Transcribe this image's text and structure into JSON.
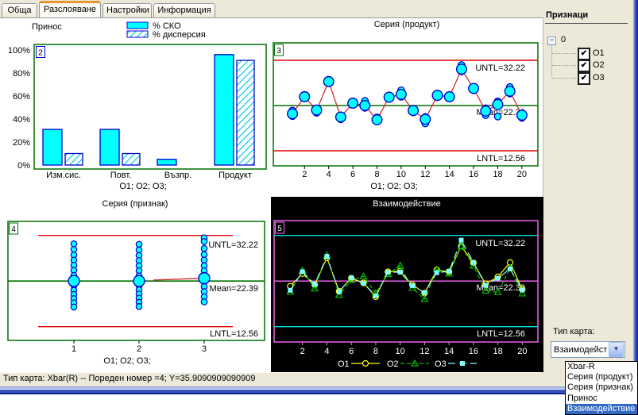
{
  "tabs": {
    "items": [
      {
        "label": "Обща",
        "active": false
      },
      {
        "label": "Разслояване",
        "active": true
      },
      {
        "label": "Настройки",
        "active": false
      },
      {
        "label": "Информация",
        "active": false
      }
    ]
  },
  "sidebar": {
    "title": "Признаци",
    "tree_root": "0",
    "items": [
      {
        "label": "О1",
        "checked": true
      },
      {
        "label": "О2",
        "checked": true
      },
      {
        "label": "О3",
        "checked": true
      }
    ],
    "check_glyph": "✔",
    "collapse_glyph": "−"
  },
  "card_type": {
    "label": "Тип карта:",
    "value": "Взаимодействие",
    "arrow_glyph": "▼",
    "options": [
      "Xbar-R",
      "Серия (продукт)",
      "Серия (признак)",
      "Принос",
      "Взаимодействие"
    ],
    "selected_index": 4
  },
  "status_bar": {
    "text": "Тип карта: Xbar(R) -- Пореден номер =4; Y=35.9090909090909"
  },
  "colors": {
    "selection_blue": "#316ac5",
    "cyan_fill": "#00ffff",
    "blue_stroke": "#0000cc",
    "limit_red": "#dd0000",
    "data_red": "#d03030",
    "mean_green": "#007000",
    "panel_border_green": "#007000",
    "black_bg": "#000000",
    "magenta": "#ff66ff",
    "cyan_line": "#00dede",
    "white": "#ffffff",
    "series_o1": "#ffff00",
    "series_o2": "#00c000",
    "series_o3": "#80ffff"
  },
  "chart_data": [
    {
      "panel": 2,
      "type": "bar",
      "title": "Принос",
      "legend": [
        {
          "label": "% СКО",
          "style": "solid"
        },
        {
          "label": "% дисперсия",
          "style": "hatched"
        }
      ],
      "categories": [
        "Изм.сис.",
        "Повт.",
        "Възпр.",
        "Продукт"
      ],
      "series": [
        {
          "name": "% СКО",
          "values": [
            31,
            31,
            5,
            96
          ]
        },
        {
          "name": "% дисперсия",
          "values": [
            10,
            10,
            null,
            91
          ]
        }
      ],
      "yticks": [
        0,
        20,
        40,
        60,
        80,
        100
      ],
      "ylim": [
        0,
        100
      ],
      "ytick_suffix": "%",
      "xlabel": "О1; О2; О3;"
    },
    {
      "panel": 3,
      "type": "control-scatter",
      "title": "Серия (продукт)",
      "x": [
        1,
        2,
        3,
        4,
        5,
        6,
        7,
        8,
        9,
        10,
        11,
        12,
        13,
        14,
        15,
        16,
        17,
        18,
        19,
        20
      ],
      "means": [
        20.6,
        24.3,
        21.4,
        27.6,
        19.9,
        22.9,
        22.4,
        19.3,
        24.2,
        24.8,
        21.3,
        19.4,
        24.6,
        24.3,
        30.3,
        26.1,
        21.2,
        22.6,
        25.5,
        20.3
      ],
      "points": {
        "o1": [
          21.3,
          24.0,
          21.6,
          27.4,
          20.2,
          23.0,
          22.0,
          19.0,
          24.4,
          24.5,
          21.6,
          19.8,
          24.8,
          24.4,
          29.9,
          26.3,
          21.8,
          23.3,
          26.4,
          20.6
        ],
        "o2": [
          20.1,
          24.7,
          20.8,
          27.9,
          19.4,
          22.6,
          23.4,
          19.8,
          23.9,
          25.7,
          20.9,
          18.5,
          24.9,
          24.0,
          29.8,
          25.7,
          20.3,
          20.0,
          25.2,
          19.7
        ],
        "o3": [
          20.4,
          24.4,
          21.7,
          27.7,
          20.1,
          23.1,
          21.9,
          19.2,
          24.3,
          24.3,
          21.4,
          19.9,
          24.2,
          24.5,
          31.2,
          26.4,
          21.5,
          23.0,
          25.0,
          20.5
        ]
      },
      "untl": {
        "label": "UNTL=32.22",
        "value": 32.22
      },
      "mean": {
        "label": "Mean=22.39",
        "value": 22.39
      },
      "lntl": {
        "label": "LNTL=12.56",
        "value": 12.56
      },
      "xticks": [
        2,
        4,
        6,
        8,
        10,
        12,
        14,
        16,
        18,
        20
      ],
      "xlabel": "О1; О2; О3;"
    },
    {
      "panel": 4,
      "type": "dot-stack",
      "title": "Серия (признак)",
      "stacks": [
        {
          "x": 1,
          "mean": 22.4,
          "dots": [
            30.4,
            29.2,
            28.0,
            26.9,
            25.8,
            24.7,
            23.6,
            21.4,
            20.4,
            19.5,
            18.6,
            17.7,
            16.8
          ]
        },
        {
          "x": 2,
          "mean": 22.4,
          "dots": [
            30.3,
            29.1,
            27.9,
            26.8,
            25.7,
            24.6,
            23.5,
            21.4,
            20.5,
            19.6,
            18.7,
            17.8,
            16.9
          ]
        },
        {
          "x": 3,
          "mean": 23.0,
          "dots": [
            31.7,
            30.9,
            29.4,
            28.1,
            26.9,
            25.7,
            24.6,
            23.5,
            22.3,
            21.2,
            20.1,
            19.0,
            17.9
          ]
        }
      ],
      "red_segment": {
        "x1": 2.22,
        "v1": 22.6,
        "x2": 3.0,
        "v2": 23.0
      },
      "untl": {
        "label": "UNTL=32.22",
        "value": 32.22
      },
      "mean": {
        "label": "Mean=22.39",
        "value": 22.39
      },
      "lntl": {
        "label": "LNTL=12.56",
        "value": 12.56
      },
      "xticks": [
        1,
        2,
        3
      ],
      "xlabel": "О1; О2; О3;"
    },
    {
      "panel": 5,
      "type": "interaction-line",
      "title": "Взаимодействие",
      "x": [
        1,
        2,
        3,
        4,
        5,
        6,
        7,
        8,
        9,
        10,
        11,
        12,
        13,
        14,
        15,
        16,
        17,
        18,
        19,
        20
      ],
      "series": [
        {
          "name": "О1",
          "marker": "circle",
          "dash": "solid",
          "values": [
            21.3,
            24.0,
            21.6,
            27.4,
            20.2,
            23.0,
            22.0,
            19.0,
            24.4,
            24.5,
            21.6,
            19.8,
            24.8,
            24.4,
            29.9,
            26.3,
            21.8,
            23.3,
            26.4,
            20.6
          ]
        },
        {
          "name": "О2",
          "marker": "triangle",
          "dash": "dashed",
          "values": [
            20.1,
            24.7,
            20.8,
            27.9,
            19.4,
            22.6,
            23.4,
            19.8,
            23.9,
            25.7,
            20.9,
            18.5,
            24.9,
            24.0,
            29.8,
            25.7,
            20.3,
            20.0,
            25.2,
            19.7
          ]
        },
        {
          "name": "О3",
          "marker": "square",
          "dash": "dashdot",
          "values": [
            20.4,
            24.4,
            21.7,
            27.7,
            20.1,
            23.1,
            21.9,
            19.2,
            24.3,
            24.3,
            21.4,
            19.9,
            24.2,
            24.5,
            31.2,
            26.4,
            21.5,
            23.0,
            25.0,
            20.5
          ]
        }
      ],
      "untl": {
        "label": "UNTL=32.22",
        "value": 32.22
      },
      "mean": {
        "label": "Mean=22.39",
        "value": 22.39
      },
      "lntl": {
        "label": "LNTL=12.56",
        "value": 12.56
      },
      "xticks": [
        2,
        4,
        6,
        8,
        10,
        12,
        14,
        16,
        18,
        20
      ],
      "xlabel": ""
    }
  ]
}
